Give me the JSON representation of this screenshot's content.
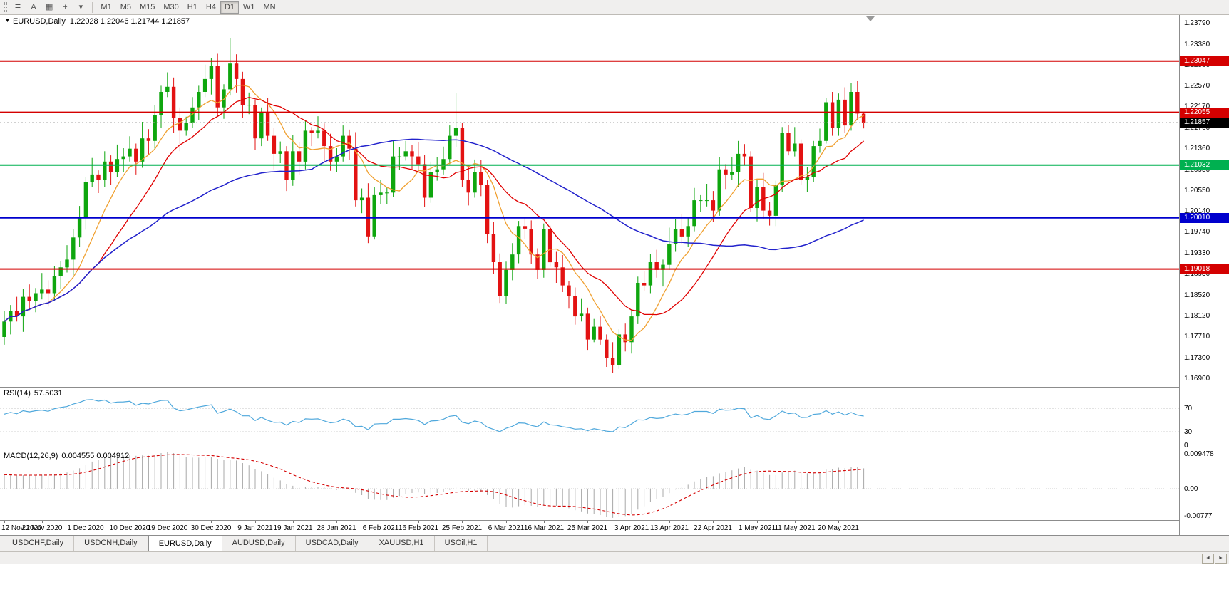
{
  "toolbar": {
    "icons": [
      {
        "name": "menu-icon",
        "glyph": "≣"
      },
      {
        "name": "annotation-text-icon",
        "glyph": "A"
      },
      {
        "name": "chart-window-icon",
        "glyph": "▦"
      },
      {
        "name": "crosshair-icon",
        "glyph": "+"
      },
      {
        "name": "dropdown-arrow-icon",
        "glyph": "▾"
      }
    ],
    "timeframes": [
      "M1",
      "M5",
      "M15",
      "M30",
      "H1",
      "H4",
      "D1",
      "W1",
      "MN"
    ],
    "active_timeframe": "D1"
  },
  "chart": {
    "marker": "▼",
    "symbol_title": "EURUSD,Daily",
    "ohlc_text": "1.22028 1.22046 1.21744 1.21857"
  },
  "price_axis": {
    "ticks": [
      "1.23790",
      "1.23380",
      "1.22980",
      "1.22570",
      "1.22170",
      "1.21760",
      "1.21360",
      "1.20950",
      "1.20550",
      "1.20140",
      "1.19740",
      "1.19330",
      "1.18930",
      "1.18520",
      "1.18120",
      "1.17710",
      "1.17300",
      "1.16900"
    ]
  },
  "chart_data": {
    "type": "candlestick",
    "symbol": "EURUSD",
    "timeframe": "Daily",
    "current_price": 1.21857,
    "current_price_label": "1.21857",
    "open": 1.22028,
    "high": 1.22046,
    "low": 1.21744,
    "close": 1.21857,
    "colors": {
      "up": "#0EA60E",
      "down": "#E31212",
      "ma_fast": "#F0A030",
      "ma_mid": "#E00000",
      "ma_slow": "#2222CC",
      "bid_line": "#A0A0A0",
      "current_badge": "#000000"
    },
    "hlines": [
      {
        "value": 1.23047,
        "label": "1.23047",
        "color": "#D40000"
      },
      {
        "value": 1.22055,
        "label": "1.22055",
        "color": "#D40000"
      },
      {
        "value": 1.21032,
        "label": "1.21032",
        "color": "#00B050"
      },
      {
        "value": 1.2001,
        "label": "1.20010",
        "color": "#0000CD"
      },
      {
        "value": 1.19018,
        "label": "1.19018",
        "color": "#D40000"
      }
    ],
    "candles": [
      [
        1.177,
        1.182,
        1.1755,
        1.18
      ],
      [
        1.18,
        1.1832,
        1.1775,
        1.182
      ],
      [
        1.182,
        1.1848,
        1.18,
        1.181
      ],
      [
        1.181,
        1.1864,
        1.178,
        1.1848
      ],
      [
        1.1848,
        1.1872,
        1.1822,
        1.184
      ],
      [
        1.184,
        1.1865,
        1.1818,
        1.1855
      ],
      [
        1.1855,
        1.1894,
        1.1843,
        1.1862
      ],
      [
        1.1862,
        1.188,
        1.1829,
        1.1855
      ],
      [
        1.1855,
        1.1908,
        1.184,
        1.1888
      ],
      [
        1.1888,
        1.1917,
        1.1863,
        1.1905
      ],
      [
        1.1905,
        1.1948,
        1.1895,
        1.192
      ],
      [
        1.192,
        1.1979,
        1.189,
        1.1963
      ],
      [
        1.1963,
        1.2024,
        1.1945,
        1.2
      ],
      [
        1.2,
        1.208,
        1.1978,
        1.207
      ],
      [
        1.207,
        1.2117,
        1.206,
        1.2085
      ],
      [
        1.2085,
        1.2093,
        1.2049,
        1.2075
      ],
      [
        1.2075,
        1.213,
        1.206,
        1.211
      ],
      [
        1.211,
        1.2122,
        1.2065,
        1.209
      ],
      [
        1.209,
        1.2143,
        1.208,
        1.2115
      ],
      [
        1.2115,
        1.2136,
        1.2089,
        1.212
      ],
      [
        1.212,
        1.2159,
        1.211,
        1.2135
      ],
      [
        1.2135,
        1.2145,
        1.2085,
        1.211
      ],
      [
        1.211,
        1.2187,
        1.2098,
        1.2155
      ],
      [
        1.2155,
        1.2173,
        1.2124,
        1.215
      ],
      [
        1.215,
        1.222,
        1.2135,
        1.22
      ],
      [
        1.22,
        1.2257,
        1.2175,
        1.2245
      ],
      [
        1.2245,
        1.2283,
        1.2235,
        1.2255
      ],
      [
        1.2255,
        1.2273,
        1.2165,
        1.2195
      ],
      [
        1.2195,
        1.2215,
        1.213,
        1.217
      ],
      [
        1.217,
        1.2197,
        1.216,
        1.2185
      ],
      [
        1.2185,
        1.2235,
        1.2175,
        1.2215
      ],
      [
        1.2215,
        1.2257,
        1.219,
        1.2245
      ],
      [
        1.2245,
        1.2298,
        1.2235,
        1.227
      ],
      [
        1.227,
        1.2311,
        1.224,
        1.2295
      ],
      [
        1.2295,
        1.2319,
        1.2197,
        1.2215
      ],
      [
        1.2215,
        1.226,
        1.2193,
        1.225
      ],
      [
        1.225,
        1.2349,
        1.2238,
        1.23
      ],
      [
        1.23,
        1.2318,
        1.2244,
        1.227
      ],
      [
        1.227,
        1.2284,
        1.2194,
        1.222
      ],
      [
        1.222,
        1.2244,
        1.2202,
        1.222
      ],
      [
        1.222,
        1.223,
        1.2132,
        1.2155
      ],
      [
        1.2155,
        1.2215,
        1.214,
        1.2205
      ],
      [
        1.2205,
        1.2233,
        1.215,
        1.216
      ],
      [
        1.216,
        1.2176,
        1.2095,
        1.2125
      ],
      [
        1.2125,
        1.2149,
        1.2107,
        1.213
      ],
      [
        1.213,
        1.214,
        1.2053,
        1.2075
      ],
      [
        1.2075,
        1.2162,
        1.2063,
        1.213
      ],
      [
        1.213,
        1.2148,
        1.2084,
        1.211
      ],
      [
        1.211,
        1.219,
        1.2095,
        1.217
      ],
      [
        1.217,
        1.2177,
        1.214,
        1.2165
      ],
      [
        1.2165,
        1.2198,
        1.2155,
        1.217
      ],
      [
        1.217,
        1.2184,
        1.211,
        1.214
      ],
      [
        1.214,
        1.2164,
        1.2092,
        1.211
      ],
      [
        1.211,
        1.2136,
        1.209,
        1.212
      ],
      [
        1.212,
        1.218,
        1.211,
        1.216
      ],
      [
        1.216,
        1.2172,
        1.2113,
        1.2135
      ],
      [
        1.2135,
        1.2167,
        1.2023,
        1.2035
      ],
      [
        1.2035,
        1.2058,
        1.201,
        1.204
      ],
      [
        1.204,
        1.2068,
        1.1952,
        1.1965
      ],
      [
        1.1965,
        1.2061,
        1.1959,
        1.2045
      ],
      [
        1.2045,
        1.2074,
        1.2027,
        1.205
      ],
      [
        1.205,
        1.206,
        1.2028,
        1.205
      ],
      [
        1.205,
        1.2152,
        1.2042,
        1.212
      ],
      [
        1.212,
        1.2138,
        1.2094,
        1.212
      ],
      [
        1.212,
        1.215,
        1.2112,
        1.213
      ],
      [
        1.213,
        1.2142,
        1.2095,
        1.212
      ],
      [
        1.212,
        1.2148,
        1.2093,
        1.2105
      ],
      [
        1.2105,
        1.2123,
        1.2022,
        1.204
      ],
      [
        1.204,
        1.211,
        1.203,
        1.209
      ],
      [
        1.209,
        1.2119,
        1.2073,
        1.2095
      ],
      [
        1.2095,
        1.2139,
        1.2085,
        1.2115
      ],
      [
        1.2115,
        1.218,
        1.2105,
        1.216
      ],
      [
        1.216,
        1.2243,
        1.2138,
        1.2175
      ],
      [
        1.2175,
        1.2185,
        1.2061,
        1.2075
      ],
      [
        1.2075,
        1.2103,
        1.2025,
        1.205
      ],
      [
        1.205,
        1.2114,
        1.204,
        1.209
      ],
      [
        1.209,
        1.2113,
        1.2043,
        1.2065
      ],
      [
        1.2065,
        1.2075,
        1.1952,
        1.197
      ],
      [
        1.197,
        1.1993,
        1.1893,
        1.1915
      ],
      [
        1.1915,
        1.1932,
        1.1836,
        1.185
      ],
      [
        1.185,
        1.1916,
        1.1835,
        1.19
      ],
      [
        1.19,
        1.1952,
        1.188,
        1.193
      ],
      [
        1.193,
        1.1995,
        1.1913,
        1.1985
      ],
      [
        1.1985,
        1.2002,
        1.196,
        1.198
      ],
      [
        1.198,
        1.1996,
        1.1911,
        1.193
      ],
      [
        1.193,
        1.1942,
        1.1882,
        1.19
      ],
      [
        1.19,
        1.199,
        1.1885,
        1.198
      ],
      [
        1.198,
        1.1986,
        1.1906,
        1.1915
      ],
      [
        1.1915,
        1.1935,
        1.1875,
        1.1905
      ],
      [
        1.1905,
        1.1929,
        1.1857,
        1.187
      ],
      [
        1.187,
        1.1878,
        1.1825,
        1.185
      ],
      [
        1.185,
        1.1866,
        1.1794,
        1.181
      ],
      [
        1.181,
        1.1845,
        1.18,
        1.1815
      ],
      [
        1.1815,
        1.1827,
        1.1745,
        1.1765
      ],
      [
        1.1765,
        1.1805,
        1.176,
        1.179
      ],
      [
        1.179,
        1.181,
        1.1755,
        1.1765
      ],
      [
        1.1765,
        1.1775,
        1.1712,
        1.173
      ],
      [
        1.173,
        1.176,
        1.17,
        1.1715
      ],
      [
        1.1715,
        1.1785,
        1.1708,
        1.1775
      ],
      [
        1.1775,
        1.1796,
        1.1742,
        1.176
      ],
      [
        1.176,
        1.1822,
        1.1738,
        1.181
      ],
      [
        1.181,
        1.1887,
        1.1795,
        1.1875
      ],
      [
        1.1875,
        1.1898,
        1.186,
        1.187
      ],
      [
        1.187,
        1.1931,
        1.1855,
        1.1915
      ],
      [
        1.1915,
        1.1939,
        1.1885,
        1.19
      ],
      [
        1.19,
        1.192,
        1.1868,
        1.191
      ],
      [
        1.191,
        1.1982,
        1.19,
        1.195
      ],
      [
        1.195,
        1.1998,
        1.1935,
        1.198
      ],
      [
        1.198,
        1.2008,
        1.195,
        1.1965
      ],
      [
        1.1965,
        1.2001,
        1.1945,
        1.1985
      ],
      [
        1.1985,
        1.2059,
        1.1975,
        1.2035
      ],
      [
        1.2035,
        1.2045,
        1.2013,
        1.2035
      ],
      [
        1.2035,
        1.2067,
        1.2023,
        1.2035
      ],
      [
        1.2035,
        1.2053,
        1.1993,
        1.2015
      ],
      [
        1.2015,
        1.2119,
        1.2005,
        1.2095
      ],
      [
        1.2095,
        1.2105,
        1.2057,
        1.2085
      ],
      [
        1.2085,
        1.2118,
        1.2075,
        1.209
      ],
      [
        1.209,
        1.215,
        1.2061,
        1.2125
      ],
      [
        1.2125,
        1.2144,
        1.2102,
        1.212
      ],
      [
        1.212,
        1.213,
        1.2012,
        1.202
      ],
      [
        1.202,
        1.2076,
        1.1994,
        1.206
      ],
      [
        1.206,
        1.2088,
        1.1999,
        1.2015
      ],
      [
        1.2015,
        1.2031,
        1.1986,
        1.2005
      ],
      [
        1.2005,
        1.2073,
        1.1985,
        1.2065
      ],
      [
        1.2065,
        1.2177,
        1.2051,
        1.2165
      ],
      [
        1.2165,
        1.2181,
        1.2122,
        1.213
      ],
      [
        1.213,
        1.2177,
        1.212,
        1.2145
      ],
      [
        1.2145,
        1.2153,
        1.2065,
        1.2075
      ],
      [
        1.2075,
        1.2099,
        1.2051,
        1.208
      ],
      [
        1.208,
        1.215,
        1.207,
        1.214
      ],
      [
        1.214,
        1.2174,
        1.2127,
        1.215
      ],
      [
        1.215,
        1.2234,
        1.2145,
        1.2225
      ],
      [
        1.2225,
        1.2245,
        1.216,
        1.2175
      ],
      [
        1.2175,
        1.2242,
        1.216,
        1.223
      ],
      [
        1.223,
        1.2254,
        1.2165,
        1.218
      ],
      [
        1.218,
        1.2263,
        1.217,
        1.2245
      ],
      [
        1.2245,
        1.2266,
        1.219,
        1.2203
      ],
      [
        1.22028,
        1.22046,
        1.21744,
        1.21857
      ]
    ],
    "date_labels": [
      {
        "t": "12 Nov 2020",
        "i": 0
      },
      {
        "t": "21 Nov 2020",
        "i": 6
      },
      {
        "t": "1 Dec 2020",
        "i": 13
      },
      {
        "t": "10 Dec 2020",
        "i": 20
      },
      {
        "t": "19 Dec 2020",
        "i": 26
      },
      {
        "t": "30 Dec 2020",
        "i": 33
      },
      {
        "t": "9 Jan 2021",
        "i": 40
      },
      {
        "t": "19 Jan 2021",
        "i": 46
      },
      {
        "t": "28 Jan 2021",
        "i": 53
      },
      {
        "t": "6 Feb 2021",
        "i": 60
      },
      {
        "t": "16 Feb 2021",
        "i": 66
      },
      {
        "t": "25 Feb 2021",
        "i": 73
      },
      {
        "t": "6 Mar 2021",
        "i": 80
      },
      {
        "t": "16 Mar 2021",
        "i": 86
      },
      {
        "t": "25 Mar 2021",
        "i": 93
      },
      {
        "t": "3 Apr 2021",
        "i": 100
      },
      {
        "t": "13 Apr 2021",
        "i": 106
      },
      {
        "t": "22 Apr 2021",
        "i": 113
      },
      {
        "t": "1 May 2021",
        "i": 120
      },
      {
        "t": "11 May 2021",
        "i": 126
      },
      {
        "t": "20 May 2021",
        "i": 133
      }
    ],
    "indicators": {
      "rsi": {
        "label": "RSI(14)",
        "value": "57.5031",
        "levels": [
          70,
          30
        ],
        "axis_labels": [
          "70",
          "30",
          "0"
        ],
        "color": "#4FA8DC"
      },
      "macd": {
        "label": "MACD(12,26,9)",
        "values": "0.004555 0.004912",
        "axis_max": "0.009478",
        "axis_zero": "0.00",
        "axis_min": "-0.00777",
        "hist_color": "#A8A8A8",
        "signal_color": "#D40000"
      }
    }
  },
  "tabs": {
    "items": [
      "USDCHF,Daily",
      "USDCNH,Daily",
      "EURUSD,Daily",
      "AUDUSD,Daily",
      "USDCAD,Daily",
      "XAUUSD,H1",
      "USOil,H1"
    ],
    "active": "EURUSD,Daily"
  },
  "scrollbar": {
    "left_arrow": "◄",
    "right_arrow": "►"
  }
}
